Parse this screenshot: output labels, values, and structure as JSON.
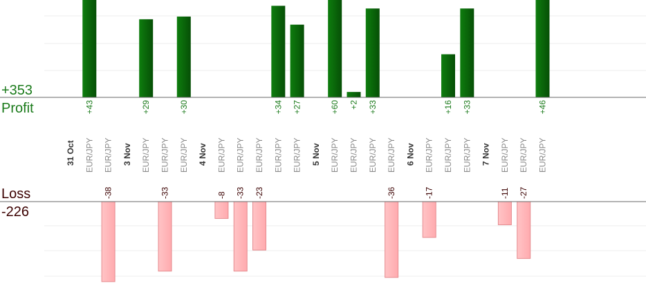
{
  "chart_data": {
    "type": "bar",
    "profit_total_label": "+353",
    "profit_label": "Profit",
    "loss_label": "Loss",
    "loss_total_label": "-226",
    "colors": {
      "profit_bar": "#0b6b0b",
      "profit_text": "#1a7a1a",
      "loss_bar": "#ffb6b9",
      "loss_stroke": "#e58a8e",
      "loss_text": "#3b0000",
      "category_text": "#8a8a8a",
      "date_text": "#333333"
    },
    "dates": [
      "31 Oct",
      "3 Nov",
      "4 Nov",
      "5 Nov",
      "6 Nov",
      "7 Nov"
    ],
    "columns": [
      {
        "kind": "date",
        "label": "31 Oct"
      },
      {
        "kind": "trade",
        "label": "EUR/JPY",
        "profit": 43,
        "profit_label": "+43"
      },
      {
        "kind": "trade",
        "label": "EUR/JPY",
        "loss": -38,
        "loss_label": "-38"
      },
      {
        "kind": "date",
        "label": "3 Nov"
      },
      {
        "kind": "trade",
        "label": "EUR/JPY",
        "profit": 29,
        "profit_label": "+29"
      },
      {
        "kind": "trade",
        "label": "EUR/JPY",
        "loss": -33,
        "loss_label": "-33"
      },
      {
        "kind": "trade",
        "label": "EUR/JPY",
        "profit": 30,
        "profit_label": "+30"
      },
      {
        "kind": "date",
        "label": "4 Nov"
      },
      {
        "kind": "trade",
        "label": "EUR/JPY",
        "loss": -8,
        "loss_label": "-8"
      },
      {
        "kind": "trade",
        "label": "EUR/JPY",
        "loss": -33,
        "loss_label": "-33"
      },
      {
        "kind": "trade",
        "label": "EUR/JPY",
        "loss": -23,
        "loss_label": "-23"
      },
      {
        "kind": "trade",
        "label": "EUR/JPY",
        "profit": 34,
        "profit_label": "+34"
      },
      {
        "kind": "trade",
        "label": "EUR/JPY",
        "profit": 27,
        "profit_label": "+27"
      },
      {
        "kind": "date",
        "label": "5 Nov"
      },
      {
        "kind": "trade",
        "label": "EUR/JPY",
        "profit": 60,
        "profit_label": "+60"
      },
      {
        "kind": "trade",
        "label": "EUR/JPY",
        "profit": 2,
        "profit_label": "+2"
      },
      {
        "kind": "trade",
        "label": "EUR/JPY",
        "profit": 33,
        "profit_label": "+33"
      },
      {
        "kind": "trade",
        "label": "EUR/JPY",
        "loss": -36,
        "loss_label": "-36"
      },
      {
        "kind": "date",
        "label": "6 Nov"
      },
      {
        "kind": "trade",
        "label": "EUR/JPY",
        "loss": -17,
        "loss_label": "-17"
      },
      {
        "kind": "trade",
        "label": "EUR/JPY",
        "profit": 16,
        "profit_label": "+16"
      },
      {
        "kind": "trade",
        "label": "EUR/JPY",
        "profit": 33,
        "profit_label": "+33"
      },
      {
        "kind": "date",
        "label": "7 Nov"
      },
      {
        "kind": "trade",
        "label": "EUR/JPY",
        "loss": -11,
        "loss_label": "-11"
      },
      {
        "kind": "trade",
        "label": "EUR/JPY",
        "loss": -27,
        "loss_label": "-27"
      },
      {
        "kind": "trade",
        "label": "EUR/JPY",
        "profit": 46,
        "profit_label": "+46"
      }
    ],
    "profit_ylim": [
      0,
      36
    ],
    "loss_ylim": [
      0,
      30
    ],
    "grid": true
  }
}
